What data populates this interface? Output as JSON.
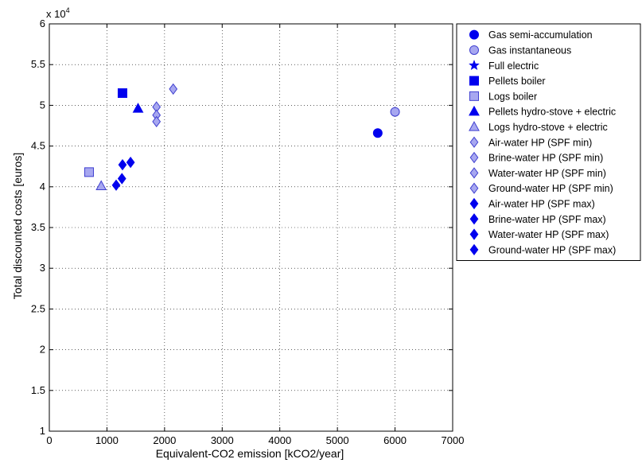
{
  "chart_data": {
    "type": "scatter",
    "title": "",
    "xlabel": "Equivalent-CO2 emission [kCO2/year]",
    "ylabel": "Total discounted costs [euros]",
    "y_multiplier_label": "x 10",
    "y_multiplier_exponent": "4",
    "xlim": [
      0,
      7000
    ],
    "ylim": [
      1,
      6
    ],
    "x_ticks": [
      0,
      1000,
      2000,
      3000,
      4000,
      5000,
      6000,
      7000
    ],
    "y_ticks": [
      1,
      1.5,
      2,
      2.5,
      3,
      3.5,
      4,
      4.5,
      5,
      5.5,
      6
    ],
    "x_tick_labels": [
      "0",
      "1000",
      "2000",
      "3000",
      "4000",
      "5000",
      "6000",
      "7000"
    ],
    "y_tick_labels": [
      "1",
      "1.5",
      "2",
      "2.5",
      "3",
      "3.5",
      "4",
      "4.5",
      "5",
      "5.5",
      "6"
    ],
    "grid": true,
    "legend_position": "outside-right",
    "colors": {
      "dark_blue": "#0000ee",
      "light_blue": "#a7a7f0",
      "light_edge": "#4040d0"
    },
    "series": [
      {
        "name": "Gas semi-accumulation",
        "marker": "circle",
        "style": "dark",
        "points": [
          {
            "x": 5700,
            "y": 4.66
          }
        ]
      },
      {
        "name": "Gas instantaneous",
        "marker": "circle",
        "style": "light",
        "points": [
          {
            "x": 6000,
            "y": 4.92
          }
        ]
      },
      {
        "name": "Full electric",
        "marker": "star",
        "style": "dark",
        "points": []
      },
      {
        "name": "Pellets boiler",
        "marker": "square",
        "style": "dark",
        "points": [
          {
            "x": 1270,
            "y": 5.15
          }
        ]
      },
      {
        "name": "Logs boiler",
        "marker": "square",
        "style": "light",
        "points": [
          {
            "x": 690,
            "y": 4.18
          }
        ]
      },
      {
        "name": "Pellets hydro-stove + electric",
        "marker": "triangle",
        "style": "dark",
        "points": [
          {
            "x": 1540,
            "y": 4.96
          }
        ]
      },
      {
        "name": "Logs hydro-stove + electric",
        "marker": "triangle",
        "style": "light",
        "points": [
          {
            "x": 900,
            "y": 4.01
          }
        ]
      },
      {
        "name": "Air-water HP (SPF min)",
        "marker": "diamond",
        "style": "light",
        "points": [
          {
            "x": 2150,
            "y": 5.2
          }
        ]
      },
      {
        "name": "Brine-water HP (SPF min)",
        "marker": "diamond",
        "style": "light",
        "points": [
          {
            "x": 1860,
            "y": 4.98
          }
        ]
      },
      {
        "name": "Water-water HP (SPF min)",
        "marker": "diamond",
        "style": "light",
        "points": [
          {
            "x": 1860,
            "y": 4.88
          }
        ]
      },
      {
        "name": "Ground-water HP (SPF min)",
        "marker": "diamond",
        "style": "light",
        "points": [
          {
            "x": 1860,
            "y": 4.8
          }
        ]
      },
      {
        "name": "Air-water HP (SPF max)",
        "marker": "diamond",
        "style": "dark",
        "points": [
          {
            "x": 1410,
            "y": 4.3
          }
        ]
      },
      {
        "name": "Brine-water HP (SPF max)",
        "marker": "diamond",
        "style": "dark",
        "points": [
          {
            "x": 1270,
            "y": 4.27
          }
        ]
      },
      {
        "name": "Water-water HP (SPF max)",
        "marker": "diamond",
        "style": "dark",
        "points": [
          {
            "x": 1260,
            "y": 4.1
          }
        ]
      },
      {
        "name": "Ground-water HP (SPF max)",
        "marker": "diamond",
        "style": "dark",
        "points": [
          {
            "x": 1160,
            "y": 4.02
          }
        ]
      }
    ]
  }
}
